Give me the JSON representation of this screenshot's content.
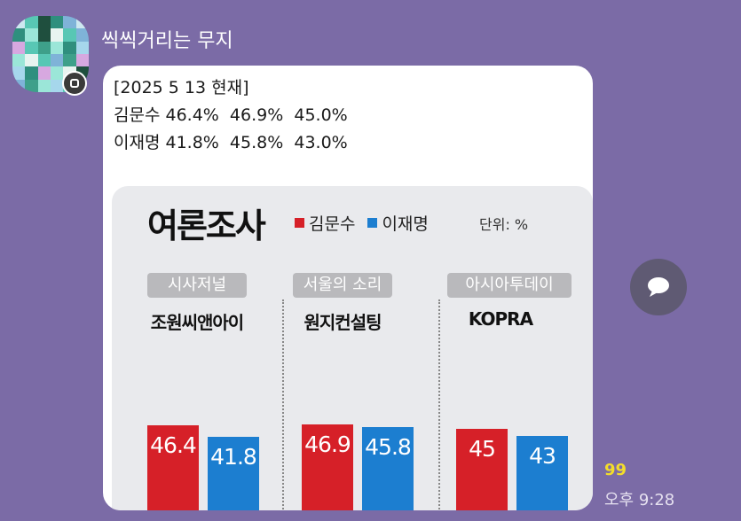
{
  "chat": {
    "sender_name": "씩씩거리는 무지",
    "message_lines": [
      "[2025 5 13 현재]",
      "김문수 46.4%  46.9%  45.0%",
      "이재명 41.8%  45.8%  43.0%"
    ],
    "read_count": "99",
    "time": "오후 9:28"
  },
  "image": {
    "title": "여론조사",
    "legend": [
      {
        "name": "김문수",
        "color": "#d62028"
      },
      {
        "name": "이재명",
        "color": "#1c7ed0"
      }
    ],
    "unit": "단위: %",
    "polls": [
      {
        "outlet": "시사저널",
        "agency": "조원씨앤아이",
        "values": [
          "46.4",
          "41.8"
        ]
      },
      {
        "outlet": "서울의 소리",
        "agency": "원지컨설팅",
        "values": [
          "46.9",
          "45.8"
        ]
      },
      {
        "outlet": "아시아투데이",
        "agency": "KOPRA",
        "values": [
          "45",
          "43"
        ]
      }
    ]
  },
  "icons": {
    "avatar": "pixelated-avatar",
    "badge": "profile-badge-icon",
    "share": "share-chat-bubble-icon"
  },
  "colors": {
    "background": "#7b6ba6",
    "bubble": "#ffffff",
    "read_count": "#f3dd2b"
  }
}
